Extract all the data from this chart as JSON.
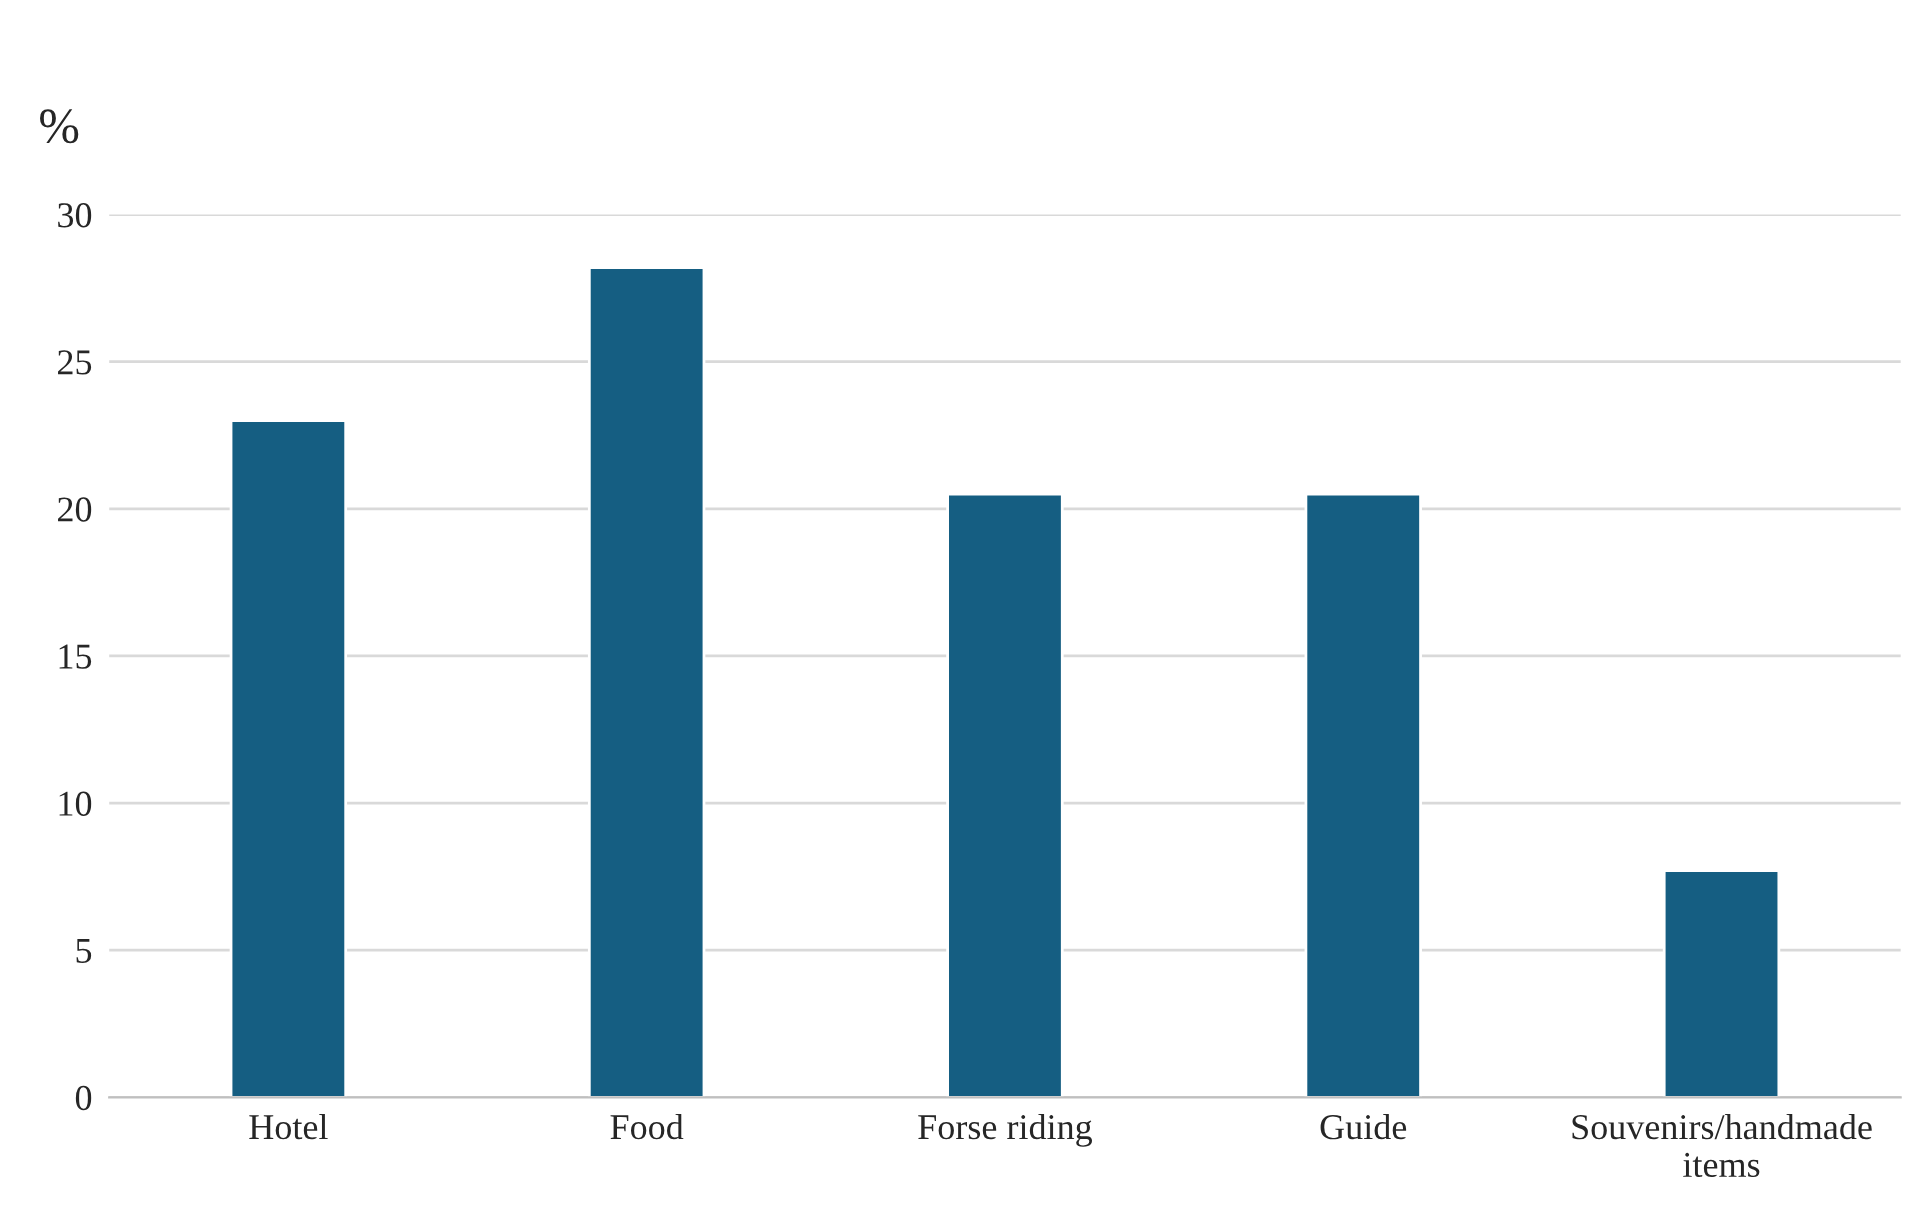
{
  "chart_data": {
    "type": "bar",
    "ylabel": "%",
    "categories": [
      "Hotel",
      "Food",
      "Forse riding",
      "Guide",
      "Souvenirs/handmade\nitems"
    ],
    "values": [
      23.0,
      28.2,
      20.5,
      20.5,
      7.7
    ],
    "color": "#155e82",
    "ylim": [
      0,
      30
    ],
    "yticks": [
      0,
      5,
      10,
      15,
      20,
      25,
      30
    ],
    "grid": "y"
  }
}
